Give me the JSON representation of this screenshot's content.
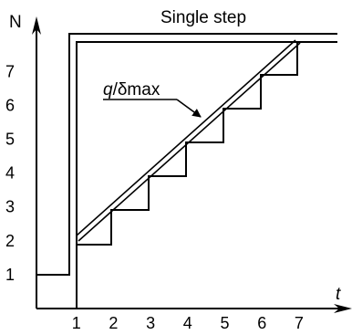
{
  "diagram": {
    "title": "Single step",
    "y_axis_label": "N",
    "x_axis_label": "t",
    "curve_label": "q/δmax",
    "curve_label_italic": "q",
    "curve_label_rest": "/δmax",
    "x_ticks": [
      "1",
      "2",
      "3",
      "4",
      "5",
      "6",
      "7"
    ],
    "y_ticks": [
      "1",
      "2",
      "3",
      "4",
      "5",
      "6",
      "7"
    ]
  },
  "chart_data": {
    "type": "line",
    "title": "Single step",
    "xlabel": "t",
    "ylabel": "N",
    "xlim": [
      0,
      8.2
    ],
    "ylim": [
      0,
      8
    ],
    "series": [
      {
        "name": "Single step",
        "x": [
          0,
          1,
          1,
          8.2
        ],
        "y": [
          1,
          1,
          7.6,
          7.6
        ],
        "style": "double"
      },
      {
        "name": "staircase",
        "x": [
          1,
          2,
          2,
          3,
          3,
          4,
          4,
          5,
          5,
          6,
          6,
          7,
          7
        ],
        "y": [
          2,
          2,
          3,
          3,
          4,
          4,
          5,
          5,
          6,
          6,
          7,
          7,
          7.6
        ]
      },
      {
        "name": "q/δmax",
        "x": [
          1,
          7
        ],
        "y": [
          2,
          7.6
        ],
        "style": "double"
      }
    ]
  }
}
